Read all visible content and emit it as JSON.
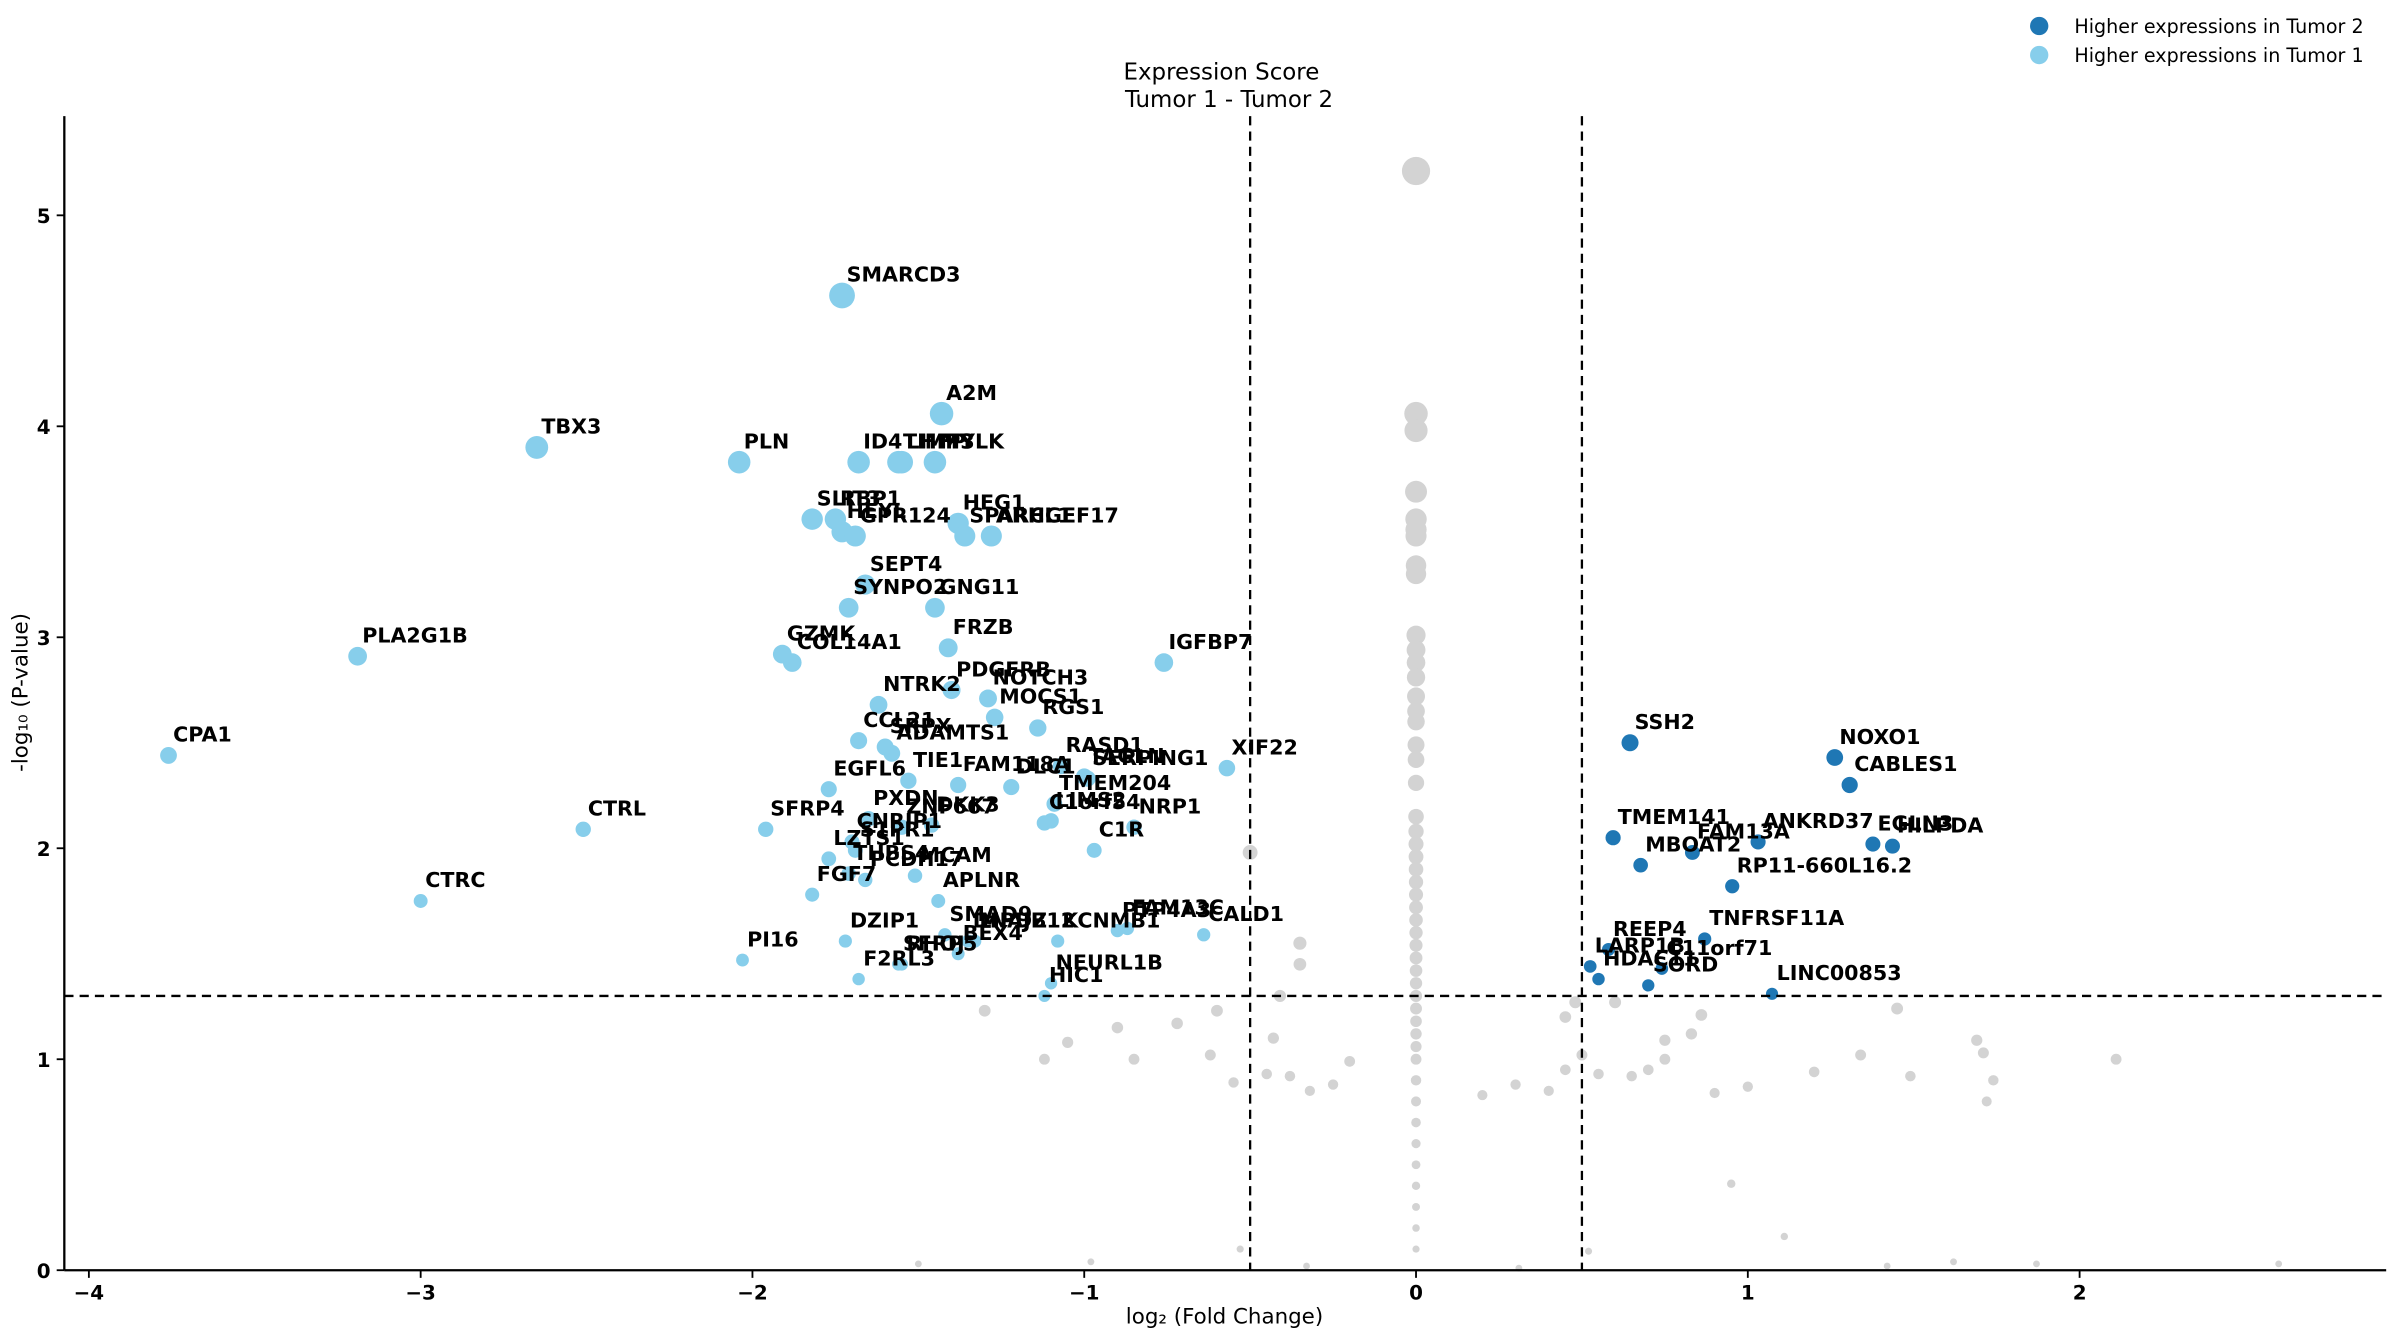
{
  "chart_data": {
    "type": "scatter",
    "title": "Expression Score",
    "subtitle": "Tumor 1 - Tumor 2",
    "x_label": "log₂ (Fold Change)",
    "y_label": "-log₁₀ (P-value)",
    "xlim": [
      -4.074,
      2.924
    ],
    "ylim": [
      0,
      5.47
    ],
    "xticks": [
      {
        "value": -4,
        "label": "−4"
      },
      {
        "value": -3,
        "label": "−3"
      },
      {
        "value": -2,
        "label": "−2"
      },
      {
        "value": -1,
        "label": "−1"
      },
      0,
      1,
      2
    ],
    "yticks": [
      0,
      1,
      2,
      3,
      4,
      5
    ],
    "vlines": [
      -0.5,
      0.5
    ],
    "hline": 1.3,
    "legend": "upper right",
    "series": [
      {
        "name": "Higher expressions in Tumor 2",
        "color": "#1f77b4",
        "labels": [
          "SSH2",
          "NOXO1",
          "CABLES1",
          "TMEM141",
          "ANKRD37",
          "EGLN3",
          "HILPDA",
          "FAM13A",
          "MBOAT2",
          "RP11-660L16.2",
          "REEP4",
          "TNFRSF11A",
          "LARP1B",
          "C11orf71",
          "HDAC11",
          "SORD",
          "LINC00853"
        ],
        "x": [
          0.645,
          1.262,
          1.307,
          0.594,
          1.031,
          1.377,
          1.436,
          0.833,
          0.677,
          0.953,
          0.58,
          0.87,
          0.525,
          0.741,
          0.55,
          0.7,
          1.073
        ],
        "values": [
          2.5,
          2.43,
          2.3,
          2.05,
          2.03,
          2.02,
          2.01,
          1.98,
          1.92,
          1.82,
          1.52,
          1.57,
          1.44,
          1.43,
          1.38,
          1.35,
          1.31
        ]
      },
      {
        "name": "Higher expressions in Tumor 1",
        "color": "#87ceeb",
        "labels": [
          "SMARCD3",
          "A2M",
          "TIMP3",
          "TBX3",
          "PLN",
          "ID4",
          "LHFP",
          "MYLK",
          "RBP1",
          "SLIT3",
          "HEYL",
          "HEG1",
          "SPARCL1",
          "GPR124",
          "ARHGEF17",
          "SEPT4",
          "SYNPO2",
          "GNG11",
          "PLA2G1B",
          "GZMK",
          "COL14A1",
          "FRZB",
          "IGFBP7",
          "PDGFRB",
          "NOTCH3",
          "NTRK2",
          "MOCS1",
          "RGS1",
          "CPA1",
          "CCL21",
          "ADAMTS1",
          "SRPX",
          "RASD1",
          "TAGLN",
          "XIF22",
          "EGFL6",
          "TIE1",
          "FAM118A",
          "DLC1",
          "SERPING1",
          "TMEM204",
          "SFRP4",
          "CTRL",
          "PXDN",
          "DKK3",
          "LIMS2",
          "CNRIP1",
          "ZNF667",
          "LZTS1",
          "C1orf54",
          "NRP1",
          "C1R",
          "S1PR1",
          "THBS4",
          "PCDH17",
          "MCAM",
          "CTRC",
          "FGF7",
          "APLNR",
          "FAM13C",
          "CALD1",
          "PTP4A3",
          "SMAD9",
          "DZIP1",
          "KCNMB1",
          "DNAJB12",
          "SFRP5",
          "BEX4",
          "PI16",
          "RHOJ",
          "MPDZ",
          "F2RL3",
          "NEURL1B",
          "HIC1"
        ],
        "x": [
          -1.73,
          -1.43,
          -1.56,
          -2.65,
          -2.04,
          -1.68,
          -1.55,
          -1.45,
          -1.75,
          -1.82,
          -1.73,
          -1.38,
          -1.36,
          -1.69,
          -1.28,
          -1.66,
          -1.71,
          -1.45,
          -3.19,
          -1.91,
          -1.88,
          -1.41,
          -0.76,
          -1.4,
          -1.29,
          -1.62,
          -1.27,
          -1.14,
          -3.76,
          -1.68,
          -1.58,
          -1.6,
          -1.07,
          -1.0,
          -0.57,
          -1.77,
          -1.53,
          -1.38,
          -1.22,
          -0.99,
          -1.09,
          -1.96,
          -2.51,
          -1.65,
          -1.46,
          -1.1,
          -1.7,
          -1.55,
          -1.77,
          -1.12,
          -0.85,
          -0.97,
          -1.69,
          -1.71,
          -1.66,
          -1.51,
          -3.0,
          -1.82,
          -1.44,
          -0.87,
          -0.64,
          -0.9,
          -1.42,
          -1.72,
          -1.08,
          -1.35,
          -1.56,
          -1.38,
          -2.03,
          -1.55,
          -1.33,
          -1.68,
          -1.1,
          -1.12
        ],
        "values": [
          4.62,
          4.06,
          3.83,
          3.9,
          3.83,
          3.83,
          3.83,
          3.83,
          3.56,
          3.56,
          3.5,
          3.54,
          3.48,
          3.48,
          3.48,
          3.25,
          3.14,
          3.14,
          2.91,
          2.92,
          2.88,
          2.95,
          2.88,
          2.75,
          2.71,
          2.68,
          2.62,
          2.57,
          2.44,
          2.51,
          2.45,
          2.48,
          2.39,
          2.34,
          2.38,
          2.28,
          2.32,
          2.3,
          2.29,
          2.33,
          2.21,
          2.09,
          2.09,
          2.14,
          2.11,
          2.13,
          2.03,
          2.1,
          1.95,
          2.12,
          2.1,
          1.99,
          1.99,
          1.88,
          1.85,
          1.87,
          1.75,
          1.78,
          1.75,
          1.62,
          1.59,
          1.61,
          1.59,
          1.56,
          1.56,
          1.56,
          1.45,
          1.5,
          1.47,
          1.45,
          1.56,
          1.38,
          1.36,
          1.3
        ]
      },
      {
        "color": "#d3d3d3",
        "x": [
          0,
          0,
          0,
          0,
          0,
          0,
          0,
          0,
          0,
          0,
          0,
          0,
          0,
          0,
          0,
          0,
          0,
          0,
          0,
          0,
          0,
          0,
          0,
          0,
          0,
          0,
          0,
          0,
          0,
          0,
          0,
          0,
          0,
          0,
          0,
          0,
          0,
          0,
          0,
          0,
          0,
          0,
          0,
          0,
          0,
          0,
          0,
          0,
          -0.5,
          -0.35,
          -0.35,
          -0.41,
          -0.6,
          -0.72,
          -0.9,
          -1.05,
          -0.85,
          -0.62,
          -0.55,
          -0.45,
          -0.38,
          -0.32,
          -0.25,
          -0.2,
          -1.12,
          -1.3,
          -0.43,
          0.2,
          0.3,
          0.4,
          0.45,
          0.5,
          0.55,
          0.65,
          0.7,
          0.75,
          0.75,
          0.83,
          0.86,
          0.9,
          1.0,
          1.2,
          1.34,
          1.49,
          1.45,
          1.69,
          1.71,
          1.74,
          1.72,
          2.11,
          0.45,
          0.48,
          0.6,
          0.95,
          1.11,
          -1.5,
          -0.98,
          0.31,
          0.52,
          1.42,
          1.62,
          1.87,
          2.6,
          -0.53,
          -0.33
        ],
        "values": [
          5.21,
          4.06,
          3.98,
          3.69,
          3.56,
          3.51,
          3.48,
          3.34,
          3.3,
          3.01,
          2.94,
          2.88,
          2.81,
          2.72,
          2.65,
          2.6,
          2.49,
          2.42,
          2.31,
          2.15,
          2.08,
          2.02,
          1.96,
          1.9,
          1.84,
          1.78,
          1.72,
          1.66,
          1.6,
          1.54,
          1.48,
          1.42,
          1.36,
          1.3,
          1.24,
          1.18,
          1.12,
          1.06,
          1.0,
          0.9,
          0.8,
          0.7,
          0.6,
          0.5,
          0.4,
          0.3,
          0.2,
          0.1,
          1.98,
          1.45,
          1.55,
          1.3,
          1.23,
          1.17,
          1.15,
          1.08,
          1.0,
          1.02,
          0.89,
          0.93,
          0.92,
          0.85,
          0.88,
          0.99,
          1.0,
          1.23,
          1.1,
          0.83,
          0.88,
          0.85,
          0.95,
          1.02,
          0.93,
          0.92,
          0.95,
          1.0,
          1.09,
          1.12,
          1.21,
          0.84,
          0.87,
          0.94,
          1.02,
          0.92,
          1.24,
          1.09,
          1.03,
          0.9,
          0.8,
          1.0,
          1.2,
          1.27,
          1.27,
          0.41,
          0.16,
          0.03,
          0.04,
          0.01,
          0.09,
          0.02,
          0.04,
          0.03,
          0.03,
          0.1,
          0.02
        ]
      }
    ]
  }
}
